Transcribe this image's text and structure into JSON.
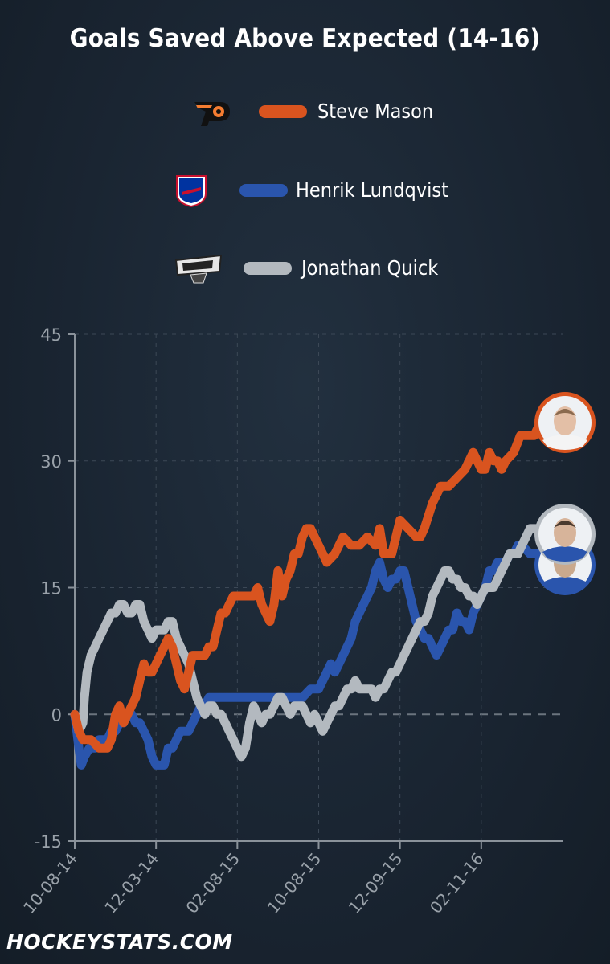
{
  "title": "Goals Saved Above Expected (14-16)",
  "footer": "HOCKEYSTATS.COM",
  "colors": {
    "mason": "#d9541f",
    "lundqvist": "#2a55ad",
    "quick": "#b3b9bf",
    "axis": "#8a929a",
    "grid": "#3c4856"
  },
  "chart_data": {
    "type": "line",
    "title": "Goals Saved Above Expected (14-16)",
    "xlabel": "",
    "ylabel": "",
    "ylim": [
      -15,
      45
    ],
    "yticks": [
      -15,
      0,
      15,
      30,
      45
    ],
    "xlim": [
      "10-08-14",
      "05-01-16"
    ],
    "xticks": [
      "10-08-14",
      "12-03-14",
      "02-08-15",
      "10-08-15",
      "12-09-15",
      "02-11-16"
    ],
    "grid": true,
    "legend": "top",
    "x_note": "x values are game numbers (0-590) on the date axis; tick dates correspond to game 0, 100, 200, 300, 400, 500",
    "tick_positions": [
      0,
      100,
      200,
      300,
      400,
      500
    ],
    "series": [
      {
        "name": "Steve Mason",
        "points": [
          [
            0,
            0
          ],
          [
            5,
            -2
          ],
          [
            10,
            -3
          ],
          [
            20,
            -3
          ],
          [
            30,
            -4
          ],
          [
            40,
            -4
          ],
          [
            45,
            -3
          ],
          [
            50,
            0
          ],
          [
            55,
            1
          ],
          [
            60,
            -1
          ],
          [
            65,
            0
          ],
          [
            70,
            1
          ],
          [
            75,
            2
          ],
          [
            80,
            4
          ],
          [
            85,
            6
          ],
          [
            90,
            5
          ],
          [
            95,
            5
          ],
          [
            100,
            6
          ],
          [
            105,
            7
          ],
          [
            110,
            8
          ],
          [
            115,
            9
          ],
          [
            120,
            8
          ],
          [
            125,
            6
          ],
          [
            130,
            4
          ],
          [
            135,
            3
          ],
          [
            140,
            5
          ],
          [
            145,
            7
          ],
          [
            150,
            7
          ],
          [
            160,
            7
          ],
          [
            165,
            8
          ],
          [
            170,
            8
          ],
          [
            175,
            10
          ],
          [
            180,
            12
          ],
          [
            185,
            12
          ],
          [
            190,
            13
          ],
          [
            195,
            14
          ],
          [
            200,
            14
          ],
          [
            210,
            14
          ],
          [
            220,
            14
          ],
          [
            225,
            15
          ],
          [
            230,
            13
          ],
          [
            235,
            12
          ],
          [
            240,
            11
          ],
          [
            245,
            13
          ],
          [
            250,
            17
          ],
          [
            255,
            14
          ],
          [
            260,
            16
          ],
          [
            265,
            17
          ],
          [
            270,
            19
          ],
          [
            275,
            19
          ],
          [
            280,
            21
          ],
          [
            285,
            22
          ],
          [
            290,
            22
          ],
          [
            295,
            21
          ],
          [
            300,
            20
          ],
          [
            305,
            19
          ],
          [
            310,
            18
          ],
          [
            320,
            19
          ],
          [
            330,
            21
          ],
          [
            340,
            20
          ],
          [
            350,
            20
          ],
          [
            360,
            21
          ],
          [
            370,
            20
          ],
          [
            375,
            22
          ],
          [
            380,
            19
          ],
          [
            385,
            19
          ],
          [
            390,
            19
          ],
          [
            395,
            21
          ],
          [
            400,
            23
          ],
          [
            410,
            22
          ],
          [
            420,
            21
          ],
          [
            425,
            21
          ],
          [
            430,
            22
          ],
          [
            440,
            25
          ],
          [
            450,
            27
          ],
          [
            460,
            27
          ],
          [
            470,
            28
          ],
          [
            480,
            29
          ],
          [
            490,
            31
          ],
          [
            495,
            30
          ],
          [
            500,
            29
          ],
          [
            505,
            29
          ],
          [
            510,
            31
          ],
          [
            515,
            30
          ],
          [
            520,
            30
          ],
          [
            525,
            29
          ],
          [
            530,
            30
          ],
          [
            540,
            31
          ],
          [
            548,
            33
          ],
          [
            555,
            33
          ],
          [
            565,
            33
          ],
          [
            570,
            34
          ],
          [
            580,
            35
          ],
          [
            590,
            35
          ]
        ]
      },
      {
        "name": "Henrik Lundqvist",
        "points": [
          [
            0,
            0
          ],
          [
            5,
            -4
          ],
          [
            8,
            -6
          ],
          [
            12,
            -5
          ],
          [
            18,
            -4
          ],
          [
            25,
            -4
          ],
          [
            30,
            -3
          ],
          [
            40,
            -3
          ],
          [
            45,
            -2
          ],
          [
            50,
            -2
          ],
          [
            55,
            -1
          ],
          [
            60,
            -1
          ],
          [
            65,
            0
          ],
          [
            70,
            0
          ],
          [
            75,
            -1
          ],
          [
            80,
            -1
          ],
          [
            85,
            -2
          ],
          [
            90,
            -3
          ],
          [
            95,
            -5
          ],
          [
            100,
            -6
          ],
          [
            105,
            -6
          ],
          [
            110,
            -6
          ],
          [
            115,
            -4
          ],
          [
            120,
            -4
          ],
          [
            125,
            -3
          ],
          [
            130,
            -2
          ],
          [
            135,
            -2
          ],
          [
            140,
            -2
          ],
          [
            145,
            -1
          ],
          [
            150,
            0
          ],
          [
            155,
            1
          ],
          [
            160,
            1
          ],
          [
            165,
            2
          ],
          [
            170,
            2
          ],
          [
            180,
            2
          ],
          [
            190,
            2
          ],
          [
            200,
            2
          ],
          [
            210,
            2
          ],
          [
            220,
            2
          ],
          [
            230,
            2
          ],
          [
            240,
            2
          ],
          [
            250,
            2
          ],
          [
            260,
            2
          ],
          [
            270,
            2
          ],
          [
            280,
            2
          ],
          [
            290,
            3
          ],
          [
            300,
            3
          ],
          [
            305,
            4
          ],
          [
            310,
            5
          ],
          [
            315,
            6
          ],
          [
            320,
            5
          ],
          [
            325,
            6
          ],
          [
            330,
            7
          ],
          [
            335,
            8
          ],
          [
            340,
            9
          ],
          [
            345,
            11
          ],
          [
            350,
            12
          ],
          [
            355,
            13
          ],
          [
            360,
            14
          ],
          [
            365,
            15
          ],
          [
            370,
            17
          ],
          [
            375,
            18
          ],
          [
            380,
            16
          ],
          [
            385,
            15
          ],
          [
            390,
            16
          ],
          [
            395,
            16
          ],
          [
            400,
            17
          ],
          [
            405,
            17
          ],
          [
            410,
            15
          ],
          [
            415,
            13
          ],
          [
            420,
            11
          ],
          [
            425,
            10
          ],
          [
            430,
            9
          ],
          [
            435,
            9
          ],
          [
            440,
            8
          ],
          [
            445,
            7
          ],
          [
            450,
            8
          ],
          [
            455,
            9
          ],
          [
            460,
            10
          ],
          [
            465,
            10
          ],
          [
            470,
            12
          ],
          [
            475,
            11
          ],
          [
            480,
            11
          ],
          [
            485,
            10
          ],
          [
            490,
            12
          ],
          [
            495,
            13
          ],
          [
            500,
            14
          ],
          [
            505,
            15
          ],
          [
            510,
            17
          ],
          [
            515,
            17
          ],
          [
            520,
            18
          ],
          [
            525,
            18
          ],
          [
            530,
            18
          ],
          [
            535,
            19
          ],
          [
            540,
            19
          ],
          [
            545,
            20
          ],
          [
            550,
            20
          ],
          [
            560,
            19
          ],
          [
            570,
            19
          ],
          [
            580,
            18
          ],
          [
            590,
            17
          ]
        ]
      },
      {
        "name": "Jonathan Quick",
        "points": [
          [
            0,
            0
          ],
          [
            5,
            -2
          ],
          [
            10,
            -1
          ],
          [
            12,
            2
          ],
          [
            15,
            5
          ],
          [
            20,
            7
          ],
          [
            25,
            8
          ],
          [
            30,
            9
          ],
          [
            35,
            10
          ],
          [
            40,
            11
          ],
          [
            45,
            12
          ],
          [
            50,
            12
          ],
          [
            55,
            13
          ],
          [
            60,
            13
          ],
          [
            65,
            12
          ],
          [
            70,
            12
          ],
          [
            75,
            13
          ],
          [
            80,
            13
          ],
          [
            85,
            11
          ],
          [
            90,
            10
          ],
          [
            95,
            9
          ],
          [
            100,
            10
          ],
          [
            105,
            10
          ],
          [
            110,
            10
          ],
          [
            115,
            11
          ],
          [
            120,
            11
          ],
          [
            125,
            9
          ],
          [
            130,
            8
          ],
          [
            135,
            7
          ],
          [
            140,
            6
          ],
          [
            145,
            4
          ],
          [
            150,
            2
          ],
          [
            155,
            1
          ],
          [
            160,
            0
          ],
          [
            165,
            1
          ],
          [
            170,
            1
          ],
          [
            175,
            0
          ],
          [
            180,
            0
          ],
          [
            185,
            -1
          ],
          [
            190,
            -2
          ],
          [
            195,
            -3
          ],
          [
            200,
            -4
          ],
          [
            205,
            -5
          ],
          [
            210,
            -4
          ],
          [
            215,
            -1
          ],
          [
            220,
            1
          ],
          [
            225,
            0
          ],
          [
            230,
            -1
          ],
          [
            235,
            0
          ],
          [
            240,
            0
          ],
          [
            245,
            1
          ],
          [
            250,
            2
          ],
          [
            255,
            2
          ],
          [
            260,
            1
          ],
          [
            265,
            0
          ],
          [
            270,
            1
          ],
          [
            275,
            1
          ],
          [
            280,
            1
          ],
          [
            285,
            0
          ],
          [
            290,
            -1
          ],
          [
            295,
            0
          ],
          [
            300,
            -1
          ],
          [
            305,
            -2
          ],
          [
            310,
            -1
          ],
          [
            315,
            0
          ],
          [
            320,
            1
          ],
          [
            325,
            1
          ],
          [
            330,
            2
          ],
          [
            335,
            3
          ],
          [
            340,
            3
          ],
          [
            345,
            4
          ],
          [
            350,
            3
          ],
          [
            355,
            3
          ],
          [
            360,
            3
          ],
          [
            365,
            3
          ],
          [
            370,
            2
          ],
          [
            375,
            3
          ],
          [
            380,
            3
          ],
          [
            385,
            4
          ],
          [
            390,
            5
          ],
          [
            395,
            5
          ],
          [
            400,
            6
          ],
          [
            405,
            7
          ],
          [
            410,
            8
          ],
          [
            415,
            9
          ],
          [
            420,
            10
          ],
          [
            425,
            11
          ],
          [
            430,
            11
          ],
          [
            435,
            12
          ],
          [
            440,
            14
          ],
          [
            445,
            15
          ],
          [
            450,
            16
          ],
          [
            455,
            17
          ],
          [
            460,
            17
          ],
          [
            465,
            16
          ],
          [
            470,
            16
          ],
          [
            475,
            15
          ],
          [
            480,
            15
          ],
          [
            485,
            14
          ],
          [
            490,
            14
          ],
          [
            495,
            13
          ],
          [
            500,
            14
          ],
          [
            505,
            15
          ],
          [
            510,
            15
          ],
          [
            515,
            15
          ],
          [
            520,
            16
          ],
          [
            525,
            17
          ],
          [
            530,
            18
          ],
          [
            535,
            19
          ],
          [
            540,
            19
          ],
          [
            545,
            19
          ],
          [
            550,
            20
          ],
          [
            555,
            21
          ],
          [
            560,
            22
          ],
          [
            565,
            22
          ],
          [
            570,
            22
          ],
          [
            575,
            22
          ],
          [
            580,
            21
          ],
          [
            590,
            21
          ]
        ]
      }
    ]
  },
  "legend": [
    {
      "name": "Steve Mason",
      "team_logo": "flyers-logo-icon",
      "color": "#d9541f"
    },
    {
      "name": "Henrik Lundqvist",
      "team_logo": "rangers-logo-icon",
      "color": "#2a55ad"
    },
    {
      "name": "Jonathan Quick",
      "team_logo": "kings-logo-icon",
      "color": "#b3b9bf"
    }
  ]
}
